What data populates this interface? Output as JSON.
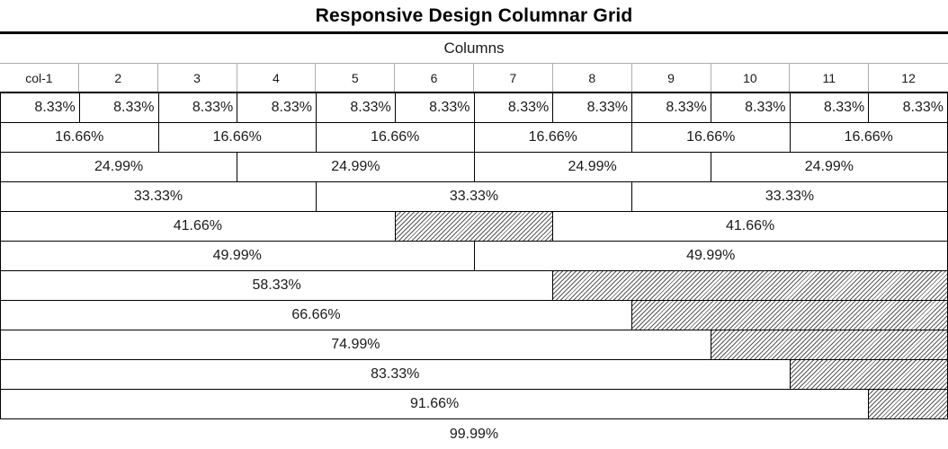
{
  "title": "Responsive Design Columnar Grid",
  "header": {
    "label": "Columns"
  },
  "grid": {
    "total_columns": 12,
    "column_headers": [
      "col-1",
      "2",
      "3",
      "4",
      "5",
      "6",
      "7",
      "8",
      "9",
      "10",
      "11",
      "12"
    ],
    "rows": [
      {
        "align": "right",
        "cells": [
          {
            "span": 1,
            "label": "8.33%"
          },
          {
            "span": 1,
            "label": "8.33%"
          },
          {
            "span": 1,
            "label": "8.33%"
          },
          {
            "span": 1,
            "label": "8.33%"
          },
          {
            "span": 1,
            "label": "8.33%"
          },
          {
            "span": 1,
            "label": "8.33%"
          },
          {
            "span": 1,
            "label": "8.33%"
          },
          {
            "span": 1,
            "label": "8.33%"
          },
          {
            "span": 1,
            "label": "8.33%"
          },
          {
            "span": 1,
            "label": "8.33%"
          },
          {
            "span": 1,
            "label": "8.33%"
          },
          {
            "span": 1,
            "label": "8.33%"
          }
        ]
      },
      {
        "cells": [
          {
            "span": 2,
            "label": "16.66%"
          },
          {
            "span": 2,
            "label": "16.66%"
          },
          {
            "span": 2,
            "label": "16.66%"
          },
          {
            "span": 2,
            "label": "16.66%"
          },
          {
            "span": 2,
            "label": "16.66%"
          },
          {
            "span": 2,
            "label": "16.66%"
          }
        ]
      },
      {
        "cells": [
          {
            "span": 3,
            "label": "24.99%"
          },
          {
            "span": 3,
            "label": "24.99%"
          },
          {
            "span": 3,
            "label": "24.99%"
          },
          {
            "span": 3,
            "label": "24.99%"
          }
        ]
      },
      {
        "cells": [
          {
            "span": 4,
            "label": "33.33%"
          },
          {
            "span": 4,
            "label": "33.33%"
          },
          {
            "span": 4,
            "label": "33.33%"
          }
        ]
      },
      {
        "cells": [
          {
            "span": 5,
            "label": "41.66%"
          },
          {
            "span": 2,
            "label": "",
            "hatched": true
          },
          {
            "span": 5,
            "label": "41.66%"
          }
        ]
      },
      {
        "cells": [
          {
            "span": 6,
            "label": "49.99%"
          },
          {
            "span": 6,
            "label": "49.99%"
          }
        ]
      },
      {
        "cells": [
          {
            "span": 7,
            "label": "58.33%"
          },
          {
            "span": 5,
            "label": "",
            "hatched": true
          }
        ]
      },
      {
        "cells": [
          {
            "span": 8,
            "label": "66.66%"
          },
          {
            "span": 4,
            "label": "",
            "hatched": true
          }
        ]
      },
      {
        "cells": [
          {
            "span": 9,
            "label": "74.99%"
          },
          {
            "span": 3,
            "label": "",
            "hatched": true
          }
        ]
      },
      {
        "cells": [
          {
            "span": 10,
            "label": "83.33%"
          },
          {
            "span": 2,
            "label": "",
            "hatched": true
          }
        ]
      },
      {
        "cells": [
          {
            "span": 11,
            "label": "91.66%"
          },
          {
            "span": 1,
            "label": "",
            "hatched": true
          }
        ]
      },
      {
        "frameless": true,
        "cells": [
          {
            "span": 12,
            "label": "99.99%"
          }
        ]
      }
    ]
  },
  "colors": {
    "border_black": "#000000",
    "border_gray": "#adadad",
    "hatch_line": "#595959",
    "text": "#1a1a1a"
  }
}
